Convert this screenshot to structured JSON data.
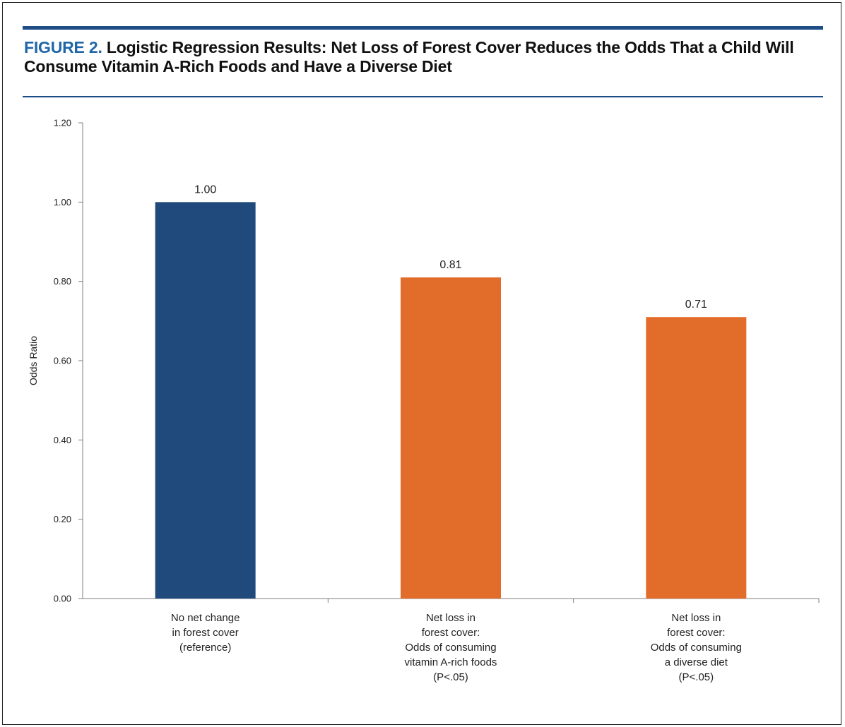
{
  "figure": {
    "label": "FIGURE 2.",
    "title": "Logistic Regression Results: Net Loss of Forest Cover Reduces the Odds That a Child Will Consume Vitamin A-Rich Foods and Have a Diverse Diet",
    "accent_color": "#1f4e87",
    "label_color": "#1f66a8"
  },
  "chart_data": {
    "type": "bar",
    "categories": [
      [
        "No net change",
        "in forest cover",
        "(reference)"
      ],
      [
        "Net loss in",
        "forest cover:",
        "Odds of consuming",
        "vitamin A-rich foods",
        "(P<.05)"
      ],
      [
        "Net loss in",
        "forest cover:",
        "Odds of consuming",
        "a diverse diet",
        "(P<.05)"
      ]
    ],
    "values": [
      1.0,
      0.81,
      0.71
    ],
    "data_labels": [
      "1.00",
      "0.81",
      "0.71"
    ],
    "bar_colors": [
      "#1f4a7b",
      "#e26d2a",
      "#e26d2a"
    ],
    "ylabel": "Odds Ratio",
    "xlabel": "",
    "ylim": [
      0,
      1.2
    ],
    "yticks": [
      "0.00",
      "0.20",
      "0.40",
      "0.60",
      "0.80",
      "1.00",
      "1.20"
    ],
    "ytick_values": [
      0,
      0.2,
      0.4,
      0.6,
      0.8,
      1.0,
      1.2
    ],
    "grid": false,
    "legend": "none"
  }
}
